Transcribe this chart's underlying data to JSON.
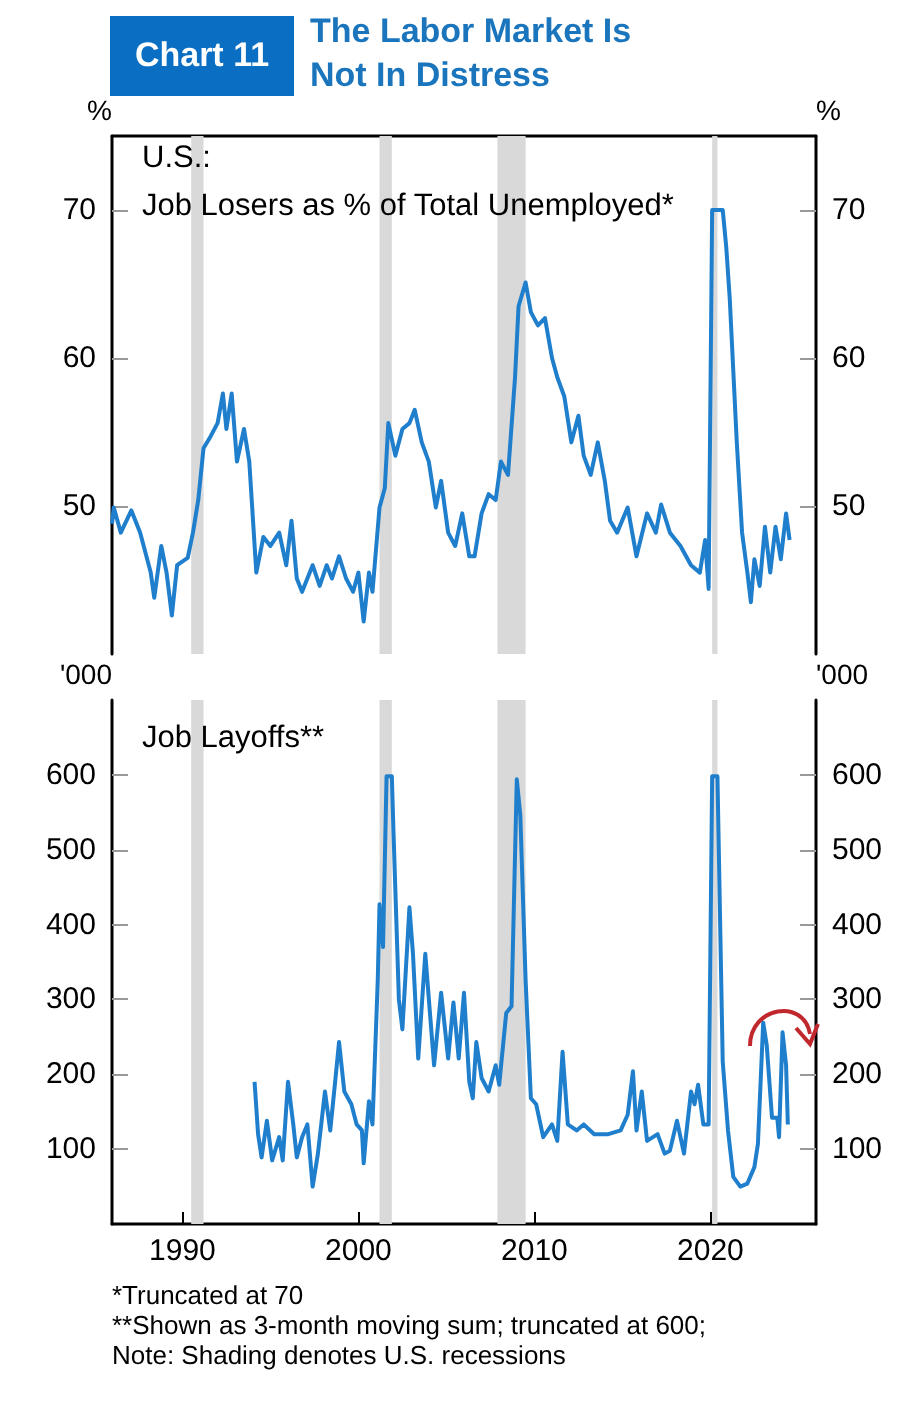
{
  "chart_data": [
    {
      "type": "other",
      "title": "The Labor Market Is Not In Distress",
      "annotations": [
        "Chart 11"
      ]
    },
    {
      "type": "line",
      "title": "U.S.:\nJob Losers as % of Total Unemployed*",
      "ylabel": "%",
      "y2label": "%",
      "x": [
        1986.0,
        1986.1,
        1986.5,
        1987.1,
        1987.6,
        1988.2,
        1988.4,
        1988.8,
        1989.1,
        1989.4,
        1989.7,
        1990.3,
        1990.6,
        1990.9,
        1991.2,
        1991.6,
        1992.0,
        1992.3,
        1992.5,
        1992.8,
        1993.1,
        1993.5,
        1993.8,
        1994.2,
        1994.6,
        1995.0,
        1995.5,
        1995.9,
        1996.2,
        1996.5,
        1996.8,
        1997.4,
        1997.8,
        1998.2,
        1998.5,
        1998.9,
        1999.3,
        1999.7,
        2000.0,
        2000.3,
        2000.6,
        2000.8,
        2001.2,
        2001.5,
        2001.7,
        2002.1,
        2002.5,
        2002.9,
        2003.2,
        2003.6,
        2004.0,
        2004.4,
        2004.7,
        2005.1,
        2005.5,
        2005.9,
        2006.3,
        2006.6,
        2007.0,
        2007.4,
        2007.8,
        2008.1,
        2008.5,
        2008.9,
        2009.1,
        2009.5,
        2009.8,
        2010.2,
        2010.6,
        2011.0,
        2011.3,
        2011.7,
        2012.1,
        2012.5,
        2012.8,
        2013.2,
        2013.6,
        2014.0,
        2014.3,
        2014.7,
        2015.3,
        2015.8,
        2016.4,
        2016.9,
        2017.2,
        2017.7,
        2018.3,
        2018.9,
        2019.4,
        2019.7,
        2019.9,
        2020.1,
        2020.7,
        2020.9,
        2021.1,
        2021.5,
        2021.8,
        2022.1,
        2022.3,
        2022.5,
        2022.8,
        2023.1,
        2023.4,
        2023.7,
        2024.0,
        2024.3,
        2024.5
      ],
      "series": [
        {
          "color": "#1f7fcc",
          "values": [
            48.8,
            49.9,
            48.2,
            49.7,
            48.2,
            45.5,
            43.8,
            47.3,
            45.5,
            42.6,
            46.0,
            46.5,
            48.2,
            50.4,
            53.9,
            54.7,
            55.6,
            57.6,
            55.2,
            57.6,
            53.0,
            55.2,
            53.0,
            45.5,
            47.9,
            47.3,
            48.2,
            46.0,
            49.0,
            45.1,
            44.2,
            46.0,
            44.6,
            46.0,
            45.1,
            46.6,
            45.1,
            44.2,
            45.5,
            42.2,
            45.5,
            44.2,
            49.9,
            51.2,
            55.6,
            53.4,
            55.2,
            55.6,
            56.5,
            54.3,
            53.0,
            49.9,
            51.7,
            48.2,
            47.3,
            49.5,
            46.6,
            46.6,
            49.5,
            50.8,
            50.4,
            53.0,
            52.1,
            58.7,
            63.5,
            65.1,
            63.1,
            62.2,
            62.7,
            60.0,
            58.7,
            57.4,
            54.3,
            56.1,
            53.4,
            52.1,
            54.3,
            51.7,
            49.0,
            48.2,
            49.9,
            46.6,
            49.5,
            48.2,
            50.1,
            48.2,
            47.3,
            46.0,
            45.5,
            47.7,
            44.4,
            70,
            70,
            67.5,
            64.0,
            54.3,
            48.2,
            45.5,
            43.5,
            46.4,
            44.6,
            48.6,
            45.5,
            48.6,
            46.4,
            49.5,
            47.7
          ]
        }
      ],
      "xlim": [
        1986,
        2026
      ],
      "xticks": [
        1990,
        2000,
        2010,
        2020
      ],
      "ylim": [
        40,
        75
      ],
      "yticks": [
        50,
        60,
        70
      ],
      "y2lim": [
        40,
        75
      ],
      "y2ticks": [
        50,
        60,
        70
      ],
      "tick_labels": "y",
      "grid": false,
      "marker": "none",
      "bands": [
        {
          "axis": "x",
          "from": 1990.5,
          "to": 1991.2,
          "color": "#d9d9d9"
        },
        {
          "axis": "x",
          "from": 2001.2,
          "to": 2001.9,
          "color": "#d9d9d9"
        },
        {
          "axis": "x",
          "from": 2007.9,
          "to": 2009.5,
          "color": "#d9d9d9"
        },
        {
          "axis": "x",
          "from": 2020.1,
          "to": 2020.4,
          "color": "#d9d9d9"
        }
      ]
    },
    {
      "type": "line",
      "title": "Job Layoffs**",
      "ylabel": "'000",
      "y2label": "'000",
      "x": [
        1994.1,
        1994.3,
        1994.5,
        1994.8,
        1995.1,
        1995.5,
        1995.7,
        1996.0,
        1996.3,
        1996.5,
        1996.8,
        1997.1,
        1997.4,
        1997.7,
        1998.1,
        1998.4,
        1998.7,
        1998.9,
        1999.2,
        1999.6,
        1999.9,
        2000.2,
        2000.3,
        2000.6,
        2000.8,
        2001.1,
        2001.2,
        2001.4,
        2001.6,
        2001.9,
        2002.0,
        2002.3,
        2002.5,
        2002.9,
        2003.1,
        2003.4,
        2003.8,
        2004.3,
        2004.7,
        2005.1,
        2005.4,
        2005.7,
        2006.0,
        2006.3,
        2006.5,
        2006.7,
        2007.0,
        2007.4,
        2007.8,
        2008.0,
        2008.4,
        2008.7,
        2009.0,
        2009.2,
        2009.5,
        2009.8,
        2010.1,
        2010.5,
        2011.0,
        2011.3,
        2011.6,
        2011.9,
        2012.4,
        2012.8,
        2013.4,
        2014.2,
        2014.9,
        2015.3,
        2015.6,
        2015.8,
        2016.1,
        2016.4,
        2017.0,
        2017.4,
        2017.7,
        2018.1,
        2018.5,
        2018.9,
        2019.1,
        2019.3,
        2019.6,
        2019.9,
        2020.1,
        2020.4,
        2020.7,
        2021.0,
        2021.3,
        2021.7,
        2022.1,
        2022.5,
        2022.7,
        2023.0,
        2023.2,
        2023.5,
        2023.8,
        2023.9,
        2024.1,
        2024.3,
        2024.4
      ],
      "series": [
        {
          "color": "#1f7fcc",
          "values": [
            190,
            120,
            89,
            138,
            85,
            116,
            85,
            190,
            133,
            89,
            116,
            133,
            50,
            94,
            177,
            125,
            195,
            243,
            177,
            160,
            133,
            125,
            81,
            164,
            133,
            326,
            427,
            370,
            598,
            598,
            519,
            300,
            260,
            423,
            361,
            221,
            361,
            212,
            309,
            221,
            296,
            221,
            309,
            190,
            168,
            243,
            195,
            177,
            212,
            186,
            282,
            291,
            594,
            546,
            326,
            168,
            160,
            116,
            133,
            111,
            230,
            133,
            125,
            133,
            120,
            120,
            125,
            146,
            204,
            125,
            177,
            111,
            120,
            94,
            98,
            138,
            94,
            177,
            160,
            186,
            133,
            133,
            598,
            598,
            217,
            125,
            63,
            50,
            54,
            76,
            107,
            269,
            239,
            142,
            142,
            116,
            256,
            212,
            133
          ]
        }
      ],
      "xlim": [
        1986,
        2026
      ],
      "xticks": [
        1990,
        2000,
        2010,
        2020
      ],
      "ylim": [
        0,
        700
      ],
      "yticks": [
        100,
        200,
        300,
        400,
        500,
        600
      ],
      "y2lim": [
        0,
        700
      ],
      "y2ticks": [
        100,
        200,
        300,
        400,
        500,
        600
      ],
      "grid": false,
      "marker": "none",
      "bands": [
        {
          "axis": "x",
          "from": 1990.5,
          "to": 1991.2,
          "color": "#d9d9d9"
        },
        {
          "axis": "x",
          "from": 2001.2,
          "to": 2001.9,
          "color": "#d9d9d9"
        },
        {
          "axis": "x",
          "from": 2007.9,
          "to": 2009.5,
          "color": "#d9d9d9"
        },
        {
          "axis": "x",
          "from": 2020.1,
          "to": 2020.4,
          "color": "#d9d9d9"
        }
      ],
      "annotations": [
        "*Truncated at 70",
        "**Shown as 3-month moving sum; truncated at 600;",
        "Note: Shading denotes U.S. recessions"
      ]
    }
  ]
}
